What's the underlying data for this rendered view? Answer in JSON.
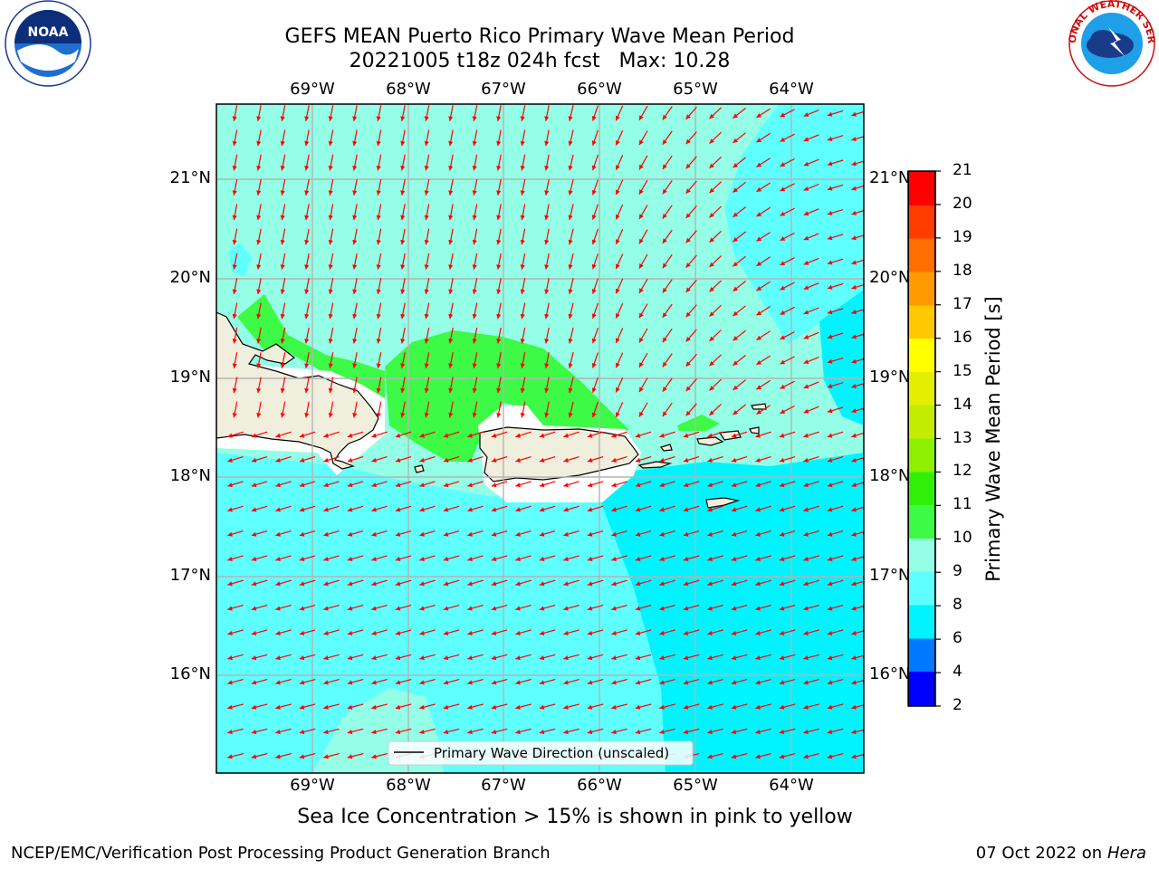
{
  "title_line1": "GEFS MEAN Puerto Rico Primary Wave Mean Period",
  "title_line2": "20221005 t18z 024h fcst   Max: 10.28",
  "subtitle": "Sea Ice Concentration > 15% is shown in pink to yellow",
  "footer_left": "NCEP/EMC/Verification Post Processing Product Generation Branch",
  "footer_date": "07 Oct 2022 on",
  "footer_machine": "Hera",
  "legend_label": "Primary Wave Direction (unscaled)",
  "colorbar_title": "Primary Wave Mean Period [s]",
  "colorbar_levels": [
    "2",
    "4",
    "6",
    "8",
    "9",
    "10",
    "11",
    "12",
    "13",
    "14",
    "15",
    "16",
    "17",
    "18",
    "19",
    "20",
    "21"
  ],
  "colorbar_colors": [
    "#0000ff",
    "#0078ff",
    "#00f4ff",
    "#60ffff",
    "#94ffe6",
    "#3cfa46",
    "#30f00a",
    "#8cf000",
    "#c4ec00",
    "#e4ee00",
    "#ffff00",
    "#ffc800",
    "#ff9a00",
    "#ff6e00",
    "#ff3c00",
    "#ff0000"
  ],
  "lon_labels": [
    "69°W",
    "68°W",
    "67°W",
    "66°W",
    "65°W",
    "64°W"
  ],
  "lat_labels": [
    "21°N",
    "20°N",
    "19°N",
    "18°N",
    "17°N",
    "16°N"
  ],
  "logo_left": "NOAA",
  "logo_right": "NATIONAL WEATHER SERVICE",
  "colors": {
    "land": "#f0eedc",
    "arrow": "#ff0000",
    "green": "#3cfa46",
    "aqua": "#94ffe6",
    "cyan": "#60ffff"
  }
}
